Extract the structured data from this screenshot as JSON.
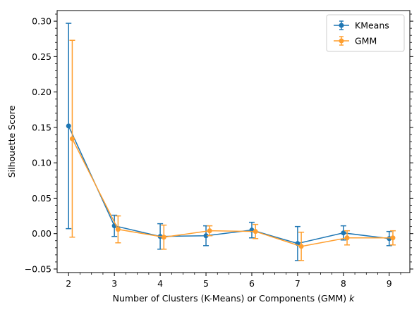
{
  "chart_data": {
    "type": "line",
    "xlabel": "Number of Clusters (K-Means) or Components (GMM) ",
    "xlabel_var": "k",
    "ylabel": "Silhouette Score",
    "x": [
      2,
      3,
      4,
      5,
      6,
      7,
      8,
      9
    ],
    "xlim": [
      1.75,
      9.45
    ],
    "ylim": [
      -0.055,
      0.315
    ],
    "x_ticks": [
      "2",
      "3",
      "4",
      "5",
      "6",
      "7",
      "8",
      "9"
    ],
    "y_ticks": [
      "−0.05",
      "0.00",
      "0.05",
      "0.10",
      "0.15",
      "0.20",
      "0.25",
      "0.30"
    ],
    "grid": false,
    "legend_position": "top-right",
    "series": [
      {
        "name": "KMeans",
        "color": "#1f77b4",
        "x_offset": 0,
        "values": [
          0.152,
          0.011,
          -0.004,
          -0.003,
          0.005,
          -0.014,
          0.001,
          -0.007
        ],
        "errors": [
          0.145,
          0.015,
          0.018,
          0.014,
          0.011,
          0.024,
          0.01,
          0.01
        ]
      },
      {
        "name": "GMM",
        "color": "#ff9f2f",
        "x_offset": 0.08,
        "values": [
          0.134,
          0.006,
          -0.005,
          0.004,
          0.003,
          -0.018,
          -0.006,
          -0.006
        ],
        "errors": [
          0.139,
          0.019,
          0.017,
          0.007,
          0.01,
          0.02,
          0.01,
          0.01
        ]
      }
    ]
  }
}
